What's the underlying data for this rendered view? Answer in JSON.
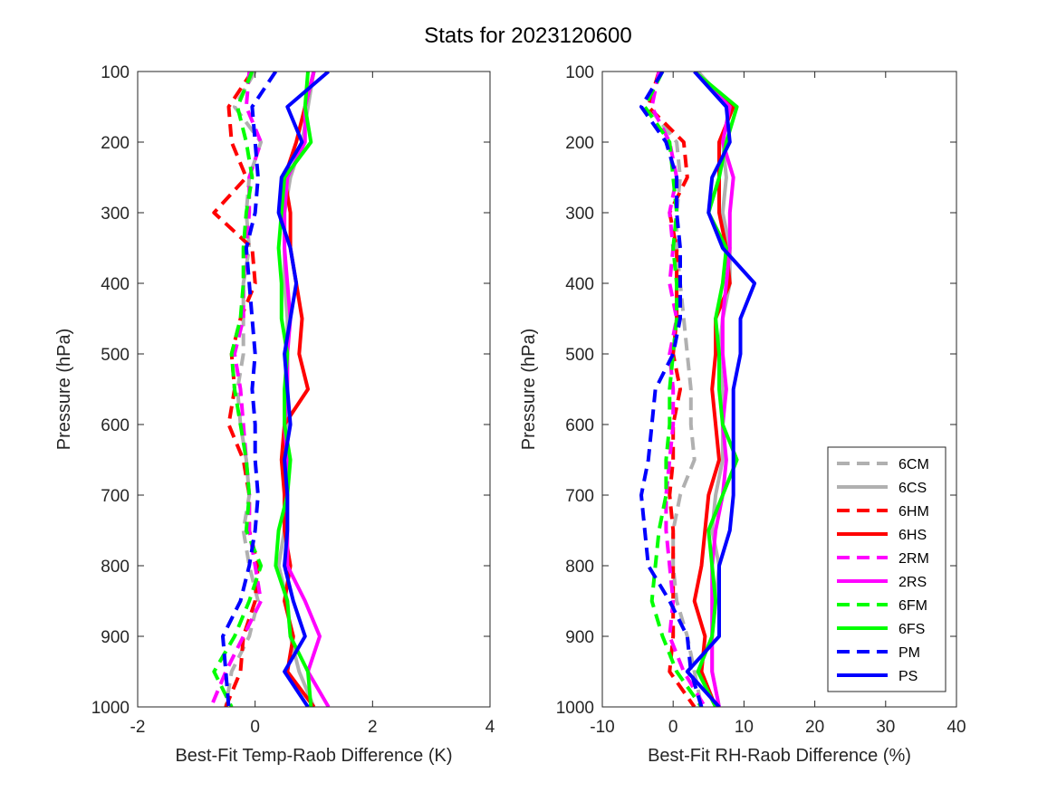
{
  "figure": {
    "title": "Stats for 2023120600"
  },
  "legend": {
    "placement": "inside bottom-right of right panel",
    "entries": [
      "6CM",
      "6CS",
      "6HM",
      "6HS",
      "2RM",
      "2RS",
      "6FM",
      "6FS",
      "PM",
      "PS"
    ]
  },
  "series_styles": {
    "6CM": {
      "color": "#b0b0b0",
      "dashed": true
    },
    "6CS": {
      "color": "#b0b0b0",
      "dashed": false
    },
    "6HM": {
      "color": "#ff0000",
      "dashed": true
    },
    "6HS": {
      "color": "#ff0000",
      "dashed": false
    },
    "2RM": {
      "color": "#ff00ff",
      "dashed": true
    },
    "2RS": {
      "color": "#ff00ff",
      "dashed": false
    },
    "6FM": {
      "color": "#00ff00",
      "dashed": true
    },
    "6FS": {
      "color": "#00ff00",
      "dashed": false
    },
    "PM": {
      "color": "#0000ff",
      "dashed": true
    },
    "PS": {
      "color": "#0000ff",
      "dashed": false
    }
  },
  "chart_data": [
    {
      "type": "line",
      "xlabel": "Best-Fit Temp-Raob Difference (K)",
      "ylabel": "Pressure (hPa)",
      "xlim": [
        -2,
        4
      ],
      "ylim": [
        1000,
        100
      ],
      "y_reversed": true,
      "xticks": [
        "-2",
        "0",
        "2",
        "4"
      ],
      "yticks": [
        "100",
        "200",
        "300",
        "400",
        "500",
        "600",
        "700",
        "800",
        "900",
        "1000"
      ],
      "grid": false,
      "y": [
        100,
        150,
        200,
        250,
        300,
        350,
        400,
        450,
        500,
        550,
        600,
        650,
        700,
        750,
        800,
        850,
        900,
        950,
        1000
      ],
      "series": [
        {
          "name": "6CM",
          "x": [
            0.0,
            -0.35,
            0.1,
            -0.1,
            -0.15,
            -0.1,
            -0.2,
            -0.2,
            -0.2,
            -0.3,
            -0.25,
            -0.15,
            -0.1,
            -0.2,
            -0.1,
            0.05,
            -0.1,
            -0.4,
            -0.5
          ]
        },
        {
          "name": "6CS",
          "x": [
            1.0,
            0.9,
            0.8,
            0.6,
            0.5,
            0.5,
            0.5,
            0.55,
            0.55,
            0.55,
            0.55,
            0.5,
            0.5,
            0.5,
            0.4,
            0.55,
            0.6,
            0.75,
            1.0
          ]
        },
        {
          "name": "6HM",
          "x": [
            -0.05,
            -0.45,
            -0.4,
            -0.15,
            -0.7,
            -0.05,
            0.0,
            -0.25,
            -0.4,
            -0.35,
            -0.45,
            -0.2,
            -0.1,
            -0.1,
            0.05,
            0.0,
            -0.2,
            -0.25,
            -0.5
          ]
        },
        {
          "name": "6HS",
          "x": [
            1.0,
            0.85,
            0.7,
            0.5,
            0.6,
            0.6,
            0.7,
            0.8,
            0.75,
            0.9,
            0.5,
            0.45,
            0.5,
            0.5,
            0.6,
            0.5,
            0.65,
            0.55,
            1.0
          ]
        },
        {
          "name": "2RM",
          "x": [
            -0.1,
            -0.15,
            0.1,
            -0.1,
            -0.1,
            -0.15,
            -0.2,
            -0.2,
            -0.35,
            -0.25,
            -0.2,
            -0.15,
            -0.1,
            -0.1,
            0.0,
            0.1,
            -0.2,
            -0.5,
            -0.75
          ]
        },
        {
          "name": "2RS",
          "x": [
            1.0,
            0.85,
            0.85,
            0.55,
            0.5,
            0.5,
            0.55,
            0.6,
            0.55,
            0.55,
            0.5,
            0.55,
            0.55,
            0.55,
            0.55,
            0.85,
            1.1,
            0.9,
            1.25
          ]
        },
        {
          "name": "6FM",
          "x": [
            -0.05,
            -0.3,
            -0.15,
            -0.05,
            -0.15,
            -0.2,
            -0.2,
            -0.25,
            -0.4,
            -0.35,
            -0.25,
            -0.15,
            -0.1,
            -0.15,
            0.1,
            -0.1,
            -0.35,
            -0.7,
            -0.4
          ]
        },
        {
          "name": "6FS",
          "x": [
            0.9,
            0.85,
            0.95,
            0.5,
            0.45,
            0.4,
            0.45,
            0.45,
            0.55,
            0.5,
            0.5,
            0.6,
            0.55,
            0.4,
            0.35,
            0.55,
            0.6,
            0.9,
            0.95
          ]
        },
        {
          "name": "PM",
          "x": [
            0.35,
            -0.05,
            0.0,
            0.05,
            0.0,
            -0.15,
            -0.1,
            -0.05,
            0.0,
            -0.05,
            0.0,
            0.0,
            0.05,
            0.0,
            -0.1,
            -0.25,
            -0.55,
            -0.5,
            -0.45
          ]
        },
        {
          "name": "PS",
          "x": [
            1.25,
            0.55,
            0.8,
            0.45,
            0.4,
            0.6,
            0.7,
            0.6,
            0.5,
            0.55,
            0.6,
            0.5,
            0.55,
            0.55,
            0.5,
            0.65,
            0.85,
            0.5,
            0.9
          ]
        }
      ]
    },
    {
      "type": "line",
      "xlabel": "Best-Fit RH-Raob Difference (%)",
      "ylabel": "Pressure (hPa)",
      "xlim": [
        -10,
        40
      ],
      "ylim": [
        1000,
        100
      ],
      "y_reversed": true,
      "xticks": [
        "-10",
        "0",
        "10",
        "20",
        "30",
        "40"
      ],
      "yticks": [
        "100",
        "200",
        "300",
        "400",
        "500",
        "600",
        "700",
        "800",
        "900",
        "1000"
      ],
      "grid": false,
      "y": [
        100,
        150,
        200,
        250,
        300,
        350,
        400,
        450,
        500,
        550,
        600,
        650,
        700,
        750,
        800,
        850,
        900,
        950,
        1000
      ],
      "series": [
        {
          "name": "6CM",
          "x": [
            -2.0,
            -3.5,
            0.5,
            1.0,
            0.5,
            0.5,
            1.0,
            1.5,
            2.0,
            2.5,
            2.5,
            3.0,
            1.0,
            0.0,
            0.0,
            0.5,
            2.0,
            3.0,
            4.0
          ]
        },
        {
          "name": "6CS",
          "x": [
            3.5,
            8.0,
            7.0,
            7.5,
            7.0,
            8.0,
            8.0,
            7.0,
            6.5,
            7.0,
            7.0,
            7.0,
            6.0,
            5.5,
            6.5,
            6.0,
            5.5,
            5.5,
            6.5
          ]
        },
        {
          "name": "6HM",
          "x": [
            -2.0,
            -3.5,
            1.5,
            2.0,
            -0.5,
            0.5,
            0.5,
            0.5,
            0.0,
            1.0,
            0.0,
            0.0,
            -0.5,
            0.0,
            0.0,
            0.0,
            0.0,
            -0.5,
            3.0
          ]
        },
        {
          "name": "6HS",
          "x": [
            3.0,
            8.5,
            6.5,
            6.5,
            6.5,
            7.5,
            8.0,
            6.0,
            6.0,
            5.5,
            6.0,
            6.5,
            5.0,
            4.5,
            4.0,
            3.0,
            4.5,
            4.0,
            6.0
          ]
        },
        {
          "name": "2RM",
          "x": [
            -2.0,
            -3.0,
            -0.5,
            0.5,
            -0.5,
            0.0,
            -0.5,
            0.5,
            -0.5,
            0.0,
            0.0,
            -0.5,
            -1.0,
            -1.0,
            -0.5,
            0.0,
            -0.5,
            1.5,
            4.5
          ]
        },
        {
          "name": "2RS",
          "x": [
            3.0,
            8.0,
            7.0,
            8.5,
            8.0,
            8.0,
            7.5,
            7.0,
            7.0,
            7.5,
            7.0,
            7.5,
            7.0,
            6.0,
            5.5,
            5.5,
            5.5,
            5.5,
            6.5
          ]
        },
        {
          "name": "6FM",
          "x": [
            -1.5,
            -4.0,
            -0.5,
            0.0,
            0.5,
            0.0,
            0.5,
            0.5,
            0.0,
            -0.5,
            -0.5,
            -1.0,
            -1.0,
            -2.0,
            -2.5,
            -3.0,
            -1.5,
            0.5,
            4.0
          ]
        },
        {
          "name": "6FS",
          "x": [
            3.0,
            9.0,
            7.5,
            6.5,
            5.0,
            7.5,
            7.0,
            6.0,
            6.5,
            6.5,
            7.0,
            9.0,
            7.0,
            5.0,
            5.5,
            6.0,
            5.5,
            3.5,
            6.0
          ]
        },
        {
          "name": "PM",
          "x": [
            -1.5,
            -4.5,
            -1.0,
            0.5,
            0.5,
            1.0,
            1.0,
            1.0,
            0.0,
            -2.5,
            -3.0,
            -3.5,
            -4.5,
            -4.0,
            -3.5,
            -0.5,
            2.0,
            2.5,
            4.0
          ]
        },
        {
          "name": "PS",
          "x": [
            3.0,
            7.5,
            8.0,
            5.5,
            5.0,
            7.0,
            11.5,
            9.5,
            9.5,
            8.5,
            8.5,
            8.5,
            8.5,
            8.0,
            6.5,
            6.5,
            6.5,
            2.0,
            6.5
          ]
        }
      ]
    }
  ]
}
